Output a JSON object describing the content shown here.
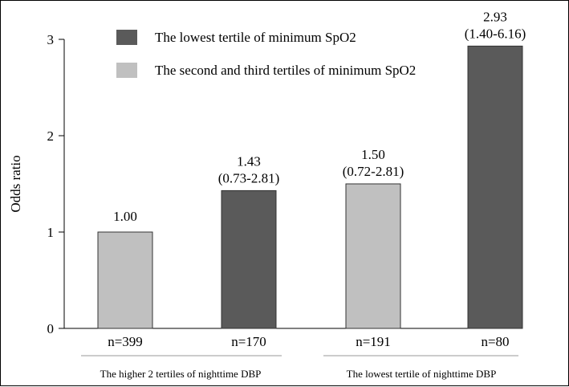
{
  "chart_data": {
    "type": "bar",
    "ylabel": "Odds ratio",
    "ylim": [
      0,
      3
    ],
    "yticks": [
      "0",
      "1",
      "2",
      "3"
    ],
    "legend": {
      "position": "top",
      "entries": [
        {
          "name": "The lowest tertile of minimum SpO2",
          "color": "#5a5a5a"
        },
        {
          "name": "The second and third tertiles of minimum SpO2",
          "color": "#c0c0c0"
        }
      ]
    },
    "bars": [
      {
        "n_label": "n=399",
        "value": 1.0,
        "value_label": "1.00",
        "ci_label": "",
        "series": 1
      },
      {
        "n_label": "n=170",
        "value": 1.43,
        "value_label": "1.43",
        "ci_label": "(0.73-2.81)",
        "series": 0
      },
      {
        "n_label": "n=191",
        "value": 1.5,
        "value_label": "1.50",
        "ci_label": "(0.72-2.81)",
        "series": 1
      },
      {
        "n_label": "n=80",
        "value": 2.93,
        "value_label": "2.93",
        "ci_label": "(1.40-6.16)",
        "series": 0
      }
    ],
    "groups": [
      {
        "label": "The higher 2 tertiles of nighttime DBP"
      },
      {
        "label": "The lowest tertile of nighttime DBP"
      }
    ]
  }
}
